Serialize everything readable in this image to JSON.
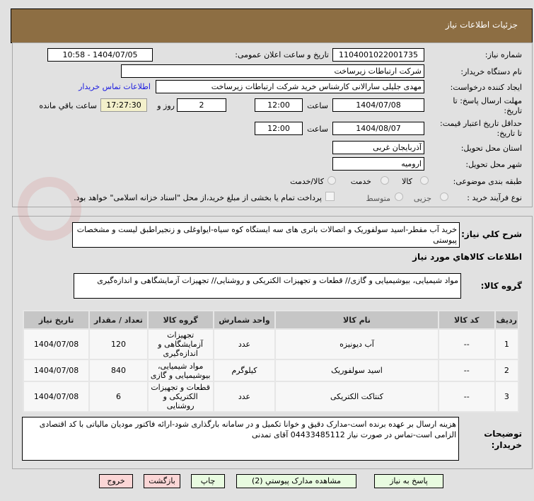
{
  "header": {
    "title": "جزئیات اطلاعات نیاز"
  },
  "watermark": "AriaTender.net",
  "form": {
    "need_number_label": "شماره نیاز:",
    "need_number": "1104001022001735",
    "announce_label": "تاریخ و ساعت اعلان عمومی:",
    "announce_value": "1404/07/05 - 10:58",
    "buyer_org_label": "نام دستگاه خریدار:",
    "buyer_org": "شرکت ارتباطات زیرساخت",
    "creator_label": "ایجاد کننده درخواست:",
    "creator": "مهدی جلیلی سارالانی کارشناس خرید شرکت ارتباطات زیرساخت",
    "contact_link": "اطلاعات تماس خریدار",
    "deadline_label": "مهلت ارسال پاسخ: تا تاریخ:",
    "deadline_date": "1404/07/08",
    "time_label": "ساعت",
    "deadline_time": "12:00",
    "days": "2",
    "days_label": "روز و",
    "remaining": "17:27:30",
    "remaining_label": "ساعت باقي مانده",
    "validity_label": "حداقل تاریخ اعتبار قیمت: تا تاریخ:",
    "validity_date": "1404/08/07",
    "validity_time": "12:00",
    "province_label": "استان محل تحویل:",
    "province": "آذربایجان غربی",
    "city_label": "شهر محل تحویل:",
    "city": "ارومیه",
    "category_label": "طبقه بندی موضوعی:",
    "category_options": [
      "کالا",
      "خدمت",
      "کالا/خدمت"
    ],
    "category_selected": "کالا",
    "process_label": "نوع فرآیند خرید :",
    "process_options": [
      "جزیی",
      "متوسط"
    ],
    "treasury_note": "پرداخت تمام یا بخشی از مبلغ خرید،از محل \"اسناد خزانه اسلامی\" خواهد بود."
  },
  "details": {
    "summary_label": "شرح کلي نیاز:",
    "summary": "خرید آب مقطر-اسید سولفوریک و اتصالات باتری های سه ایستگاه کوه سیاه-ایواوغلی و زنجیراطبق لیست و مشخصات پیوستی",
    "goods_info_title": "اطلاعات کالاهاي مورد نیاز",
    "goods_group_label": "گروه کالا:",
    "goods_group": "مواد شیمیایی، بیوشیمیایی و  گازی// قطعات و تجهیزات الکتریکی و روشنایی// تجهیزات آزمایشگاهی و اندازه‌گیری",
    "table": {
      "headers": [
        "ردیف",
        "کد کالا",
        "نام کالا",
        "واحد شمارش",
        "گروه کالا",
        "تعداد / مقدار",
        "تاریخ نیاز"
      ],
      "rows": [
        [
          "1",
          "--",
          "آب دیونیزه",
          "عدد",
          "تجهیزات آزمایشگاهی و اندازه‌گیری",
          "120",
          "1404/07/08"
        ],
        [
          "2",
          "--",
          "اسید سولفوریک",
          "کیلوگرم",
          "مواد شیمیایی، بیوشیمیایی و گازی",
          "840",
          "1404/07/08"
        ],
        [
          "3",
          "--",
          "کنتاکت الکتریکی",
          "عدد",
          "قطعات و تجهیزات الکتریکی و روشنایی",
          "6",
          "1404/07/08"
        ]
      ]
    },
    "buyer_notes_label": "توضیحات خریدار:",
    "buyer_notes": "هزینه ارسال بر عهده برنده است-مدارک دقیق و خوانا تکمیل و در سامانه بارگذاری شود-ارائه فاکتور مودیان مالیاتی با کد اقتصادی الزامی است-تماس در صورت نیاز 04433485112 آقای تمدنی"
  },
  "buttons": {
    "reply": "پاسخ به نیاز",
    "attachments": "مشاهده مدارک پیوستي (2)",
    "print": "چاپ",
    "back": "بازگشت",
    "exit": "خروج"
  }
}
